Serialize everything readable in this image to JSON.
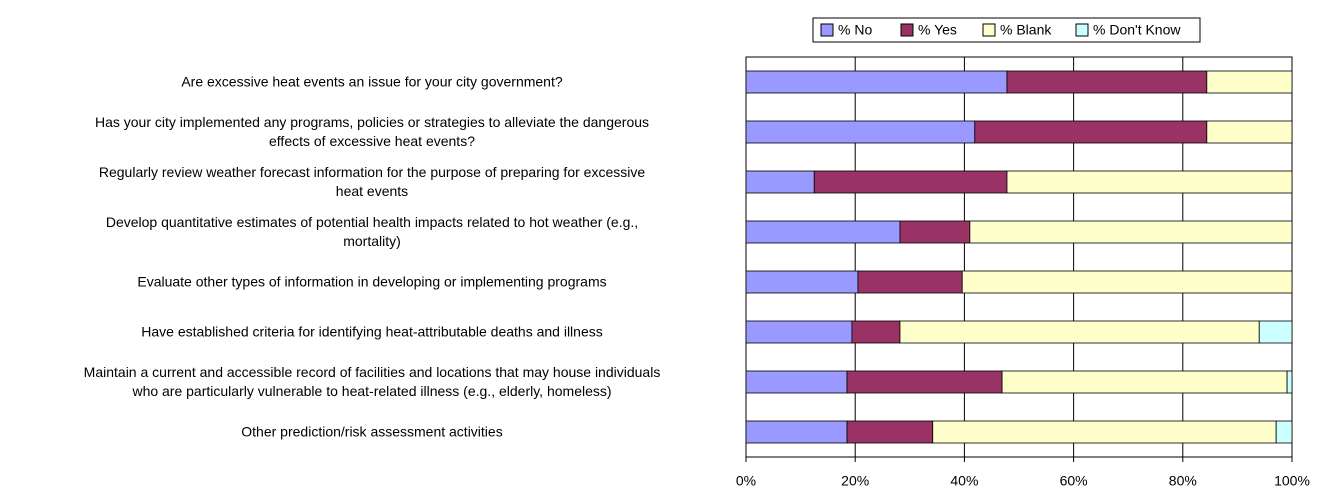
{
  "chart_data": {
    "type": "stacked_bar_horizontal",
    "categories": [
      "Are excessive heat events an issue for your city government?",
      "Has your city implemented any programs, policies or strategies to alleviate the dangerous\neffects of excessive heat events?",
      "Regularly review weather forecast information for the purpose of preparing for excessive\nheat events",
      "Develop quantitative estimates of potential health impacts related to hot weather (e.g.,\nmortality)",
      "Evaluate other types of information in developing or implementing programs",
      "Have established criteria for identifying heat-attributable deaths and illness",
      "Maintain a current and accessible record of facilities and locations that may house individuals\nwho are particularly vulnerable to heat-related illness (e.g., elderly, homeless)",
      "Other prediction/risk assessment activities"
    ],
    "series": [
      {
        "name": "% No",
        "color": "#9999ff",
        "values": [
          47.8,
          41.9,
          12.5,
          28.2,
          20.5,
          19.4,
          18.5,
          18.5
        ]
      },
      {
        "name": "% Yes",
        "color": "#993366",
        "values": [
          36.6,
          42.5,
          35.3,
          12.8,
          19.1,
          8.8,
          28.4,
          15.7
        ]
      },
      {
        "name": "% Blank",
        "color": "#ffffcc",
        "values": [
          15.6,
          15.6,
          52.2,
          59.0,
          60.4,
          65.8,
          52.2,
          62.9
        ]
      },
      {
        "name": "% Don't Know",
        "color": "#ccffff",
        "values": [
          0,
          0,
          0,
          0,
          0,
          6.0,
          0.9,
          2.9
        ]
      }
    ],
    "xlim": [
      0,
      100
    ],
    "xticks": [
      {
        "value": 0,
        "label": "0%"
      },
      {
        "value": 20,
        "label": "20%"
      },
      {
        "value": 40,
        "label": "40%"
      },
      {
        "value": 60,
        "label": "60%"
      },
      {
        "value": 80,
        "label": "80%"
      },
      {
        "value": 100,
        "label": "100%"
      }
    ],
    "grid": true,
    "legend": "top"
  }
}
